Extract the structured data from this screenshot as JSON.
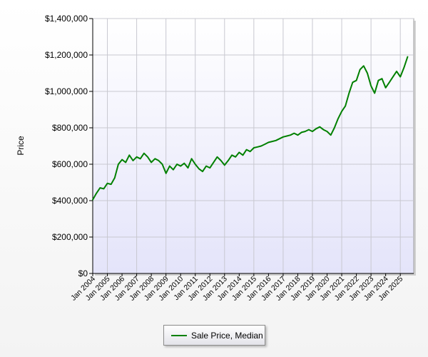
{
  "chart_data": {
    "type": "line",
    "title": "",
    "xlabel": "",
    "ylabel": "Price",
    "ylim": [
      0,
      1400000
    ],
    "yticks": [
      0,
      200000,
      400000,
      600000,
      800000,
      1000000,
      1200000,
      1400000
    ],
    "ytick_labels": [
      "$0",
      "$200,000",
      "$400,000",
      "$600,000",
      "$800,000",
      "$1,000,000",
      "$1,200,000",
      "$1,400,000"
    ],
    "xlim": [
      "2004-01",
      "2025-12"
    ],
    "xtick_labels": [
      "Jan 2004",
      "Jan 2005",
      "Jan 2006",
      "Jan 2007",
      "Jan 2008",
      "Jan 2009",
      "Jan 2010",
      "Jan 2011",
      "Jan 2012",
      "Jan 2013",
      "Jan 2014",
      "Jan 2015",
      "Jan 2016",
      "Jan 2017",
      "Jan 2018",
      "Jan 2019",
      "Jan 2020",
      "Jan 2021",
      "Jan 2022",
      "Jan 2023",
      "Jan 2024",
      "Jan 2025"
    ],
    "grid": true,
    "legend_position": "bottom-center",
    "series_color": "#008000",
    "plot_background": [
      "#ffffff",
      "#e4e4fa"
    ],
    "series": [
      {
        "name": "Sale Price, Median",
        "x": [
          "2004-01",
          "2004-04",
          "2004-07",
          "2004-10",
          "2005-01",
          "2005-04",
          "2005-07",
          "2005-10",
          "2006-01",
          "2006-04",
          "2006-07",
          "2006-10",
          "2007-01",
          "2007-04",
          "2007-07",
          "2007-10",
          "2008-01",
          "2008-04",
          "2008-07",
          "2008-10",
          "2009-01",
          "2009-04",
          "2009-07",
          "2009-10",
          "2010-01",
          "2010-04",
          "2010-07",
          "2010-10",
          "2011-01",
          "2011-04",
          "2011-07",
          "2011-10",
          "2012-01",
          "2012-04",
          "2012-07",
          "2012-10",
          "2013-01",
          "2013-04",
          "2013-07",
          "2013-10",
          "2014-01",
          "2014-04",
          "2014-07",
          "2014-10",
          "2015-01",
          "2015-04",
          "2015-07",
          "2015-10",
          "2016-01",
          "2016-04",
          "2016-07",
          "2016-10",
          "2017-01",
          "2017-04",
          "2017-07",
          "2017-10",
          "2018-01",
          "2018-04",
          "2018-07",
          "2018-10",
          "2019-01",
          "2019-04",
          "2019-07",
          "2019-10",
          "2020-01",
          "2020-04",
          "2020-07",
          "2020-10",
          "2021-01",
          "2021-04",
          "2021-07",
          "2021-10",
          "2022-01",
          "2022-04",
          "2022-07",
          "2022-10",
          "2023-01",
          "2023-04",
          "2023-07",
          "2023-10",
          "2024-01",
          "2024-04",
          "2024-07",
          "2024-10",
          "2025-01",
          "2025-04",
          "2025-07"
        ],
        "y": [
          405000,
          440000,
          470000,
          465000,
          495000,
          490000,
          525000,
          600000,
          625000,
          610000,
          650000,
          620000,
          640000,
          630000,
          660000,
          640000,
          610000,
          630000,
          620000,
          600000,
          550000,
          590000,
          570000,
          600000,
          590000,
          605000,
          580000,
          630000,
          600000,
          575000,
          560000,
          590000,
          580000,
          610000,
          640000,
          620000,
          595000,
          620000,
          650000,
          640000,
          665000,
          650000,
          680000,
          670000,
          690000,
          695000,
          700000,
          710000,
          720000,
          725000,
          730000,
          740000,
          750000,
          755000,
          760000,
          770000,
          760000,
          775000,
          780000,
          790000,
          780000,
          795000,
          805000,
          790000,
          780000,
          760000,
          800000,
          850000,
          890000,
          920000,
          990000,
          1050000,
          1060000,
          1120000,
          1140000,
          1100000,
          1030000,
          990000,
          1060000,
          1070000,
          1020000,
          1050000,
          1080000,
          1110000,
          1080000,
          1130000,
          1190000
        ]
      }
    ]
  }
}
